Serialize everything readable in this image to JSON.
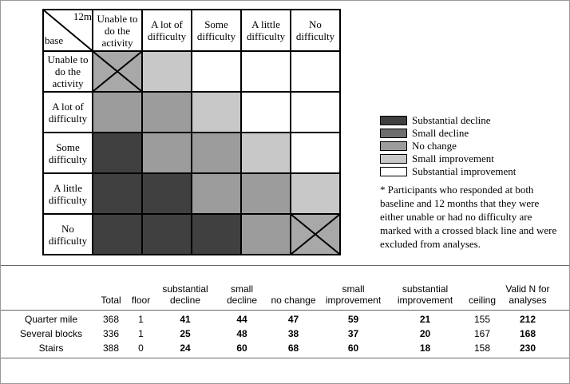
{
  "matrix": {
    "corner_top": "12m",
    "corner_bottom": "base",
    "columns": [
      "Unable to do the activity",
      "A lot of difficulty",
      "Some difficulty",
      "A little difficulty",
      "No difficulty"
    ],
    "rows": [
      "Unable to do the activity",
      "A lot of difficulty",
      "Some difficulty",
      "A little difficulty",
      "No difficulty"
    ]
  },
  "legend": {
    "items": [
      "Substantial decline",
      "Small decline",
      "No change",
      "Small improvement",
      "Substantial improvement"
    ],
    "note": "* Participants who responded at both baseline and 12 months that they were either unable or had no difficulty are marked with a crossed black line and were excluded from analyses."
  },
  "table": {
    "headers": [
      "Total",
      "floor",
      "substantial decline",
      "small decline",
      "no change",
      "small improvement",
      "substantial improvement",
      "ceiling",
      "Valid N for analyses"
    ],
    "rows": [
      [
        "Quarter mile",
        368,
        1,
        41,
        44,
        47,
        59,
        21,
        155,
        212
      ],
      [
        "Several blocks",
        336,
        1,
        25,
        48,
        38,
        37,
        20,
        167,
        168
      ],
      [
        "Stairs",
        388,
        0,
        24,
        60,
        68,
        60,
        18,
        158,
        230
      ]
    ]
  }
}
